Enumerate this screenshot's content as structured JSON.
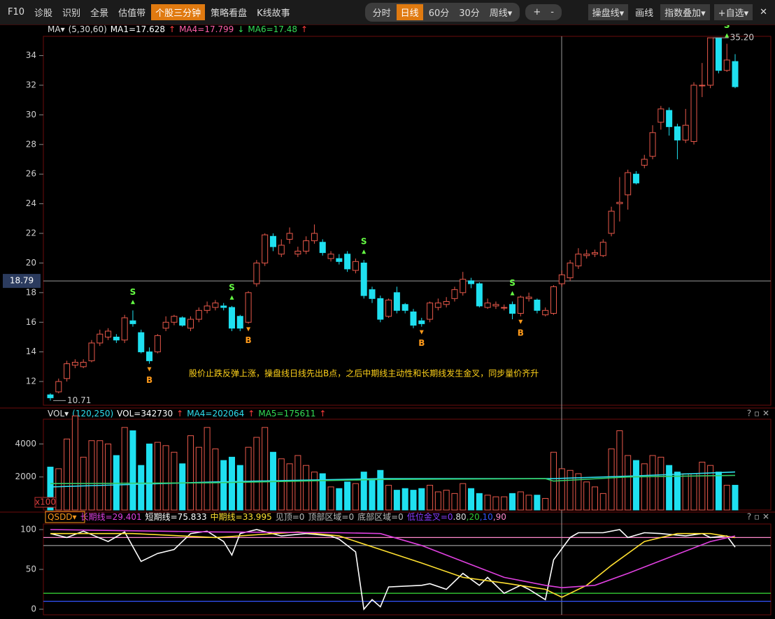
{
  "toolbar": {
    "left": [
      {
        "label": "F10"
      },
      {
        "label": "诊股"
      },
      {
        "label": "识别"
      },
      {
        "label": "全景"
      },
      {
        "label": "估值带"
      },
      {
        "label": "个股三分钟",
        "active": true
      },
      {
        "label": "策略看盘"
      },
      {
        "label": "K线故事"
      }
    ],
    "periods": [
      {
        "label": "分时"
      },
      {
        "label": "日线",
        "active": true
      },
      {
        "label": "60分"
      },
      {
        "label": "30分"
      },
      {
        "label": "周线▾"
      }
    ],
    "zoom": [
      {
        "label": "+"
      },
      {
        "label": "-"
      }
    ],
    "right": [
      {
        "label": "操盘线▾"
      },
      {
        "label": "画线"
      },
      {
        "label": "指数叠加▾"
      },
      {
        "label": "+自选▾"
      },
      {
        "label": "✕"
      }
    ]
  },
  "panel_icons": "? ▫ ✕",
  "chart_data": [
    {
      "type": "candlestick",
      "header": [
        {
          "text": "MA▾",
          "color": "#dddddd"
        },
        {
          "text": "(5,30,60)",
          "color": "#dddddd"
        },
        {
          "text": "MA1=17.628",
          "color": "#ffffff"
        },
        {
          "text": "↑",
          "color": "#ff3b3b"
        },
        {
          "text": "MA4=17.799",
          "color": "#ff5fa8"
        },
        {
          "text": "↓",
          "color": "#33dd55"
        },
        {
          "text": "MA6=17.48",
          "color": "#33dd55"
        },
        {
          "text": "↑",
          "color": "#ff3b3b"
        }
      ],
      "open": [
        11.1,
        11.3,
        12.2,
        13.1,
        13.0,
        13.4,
        14.6,
        15.0,
        15.0,
        14.8,
        16.1,
        15.3,
        14.0,
        14.0,
        15.6,
        16.0,
        16.3,
        15.6,
        16.2,
        16.8,
        17.0,
        17.1,
        17.0,
        16.4,
        16.0,
        18.6,
        20.0,
        21.8,
        20.6,
        21.6,
        20.6,
        20.8,
        21.5,
        21.4,
        20.3,
        20.3,
        20.6,
        19.5,
        20.0,
        18.2,
        17.6,
        16.4,
        18.0,
        17.2,
        16.7,
        16.1,
        16.2,
        17.0,
        17.2,
        17.6,
        18.0,
        18.8,
        18.6,
        17.0,
        17.1,
        17.0,
        17.2,
        16.6,
        17.6,
        17.5,
        16.5,
        16.6,
        18.6,
        19.0,
        19.8,
        20.5,
        20.6,
        20.5,
        22.0,
        24.0,
        24.6,
        26.0,
        26.6,
        27.2,
        29.5,
        30.3,
        29.2,
        28.3,
        28.2,
        32.0,
        32.0,
        35.2,
        33.0,
        33.6
      ],
      "high": [
        11.2,
        12.2,
        13.4,
        13.5,
        13.5,
        14.8,
        15.5,
        15.6,
        15.2,
        16.5,
        16.8,
        15.5,
        14.3,
        15.2,
        16.4,
        16.5,
        16.4,
        16.4,
        17.0,
        17.4,
        17.5,
        17.3,
        17.1,
        16.5,
        18.1,
        20.2,
        22.0,
        22.0,
        21.6,
        22.4,
        21.1,
        21.8,
        22.6,
        21.6,
        20.8,
        20.6,
        20.8,
        20.3,
        20.2,
        18.4,
        17.8,
        17.6,
        18.4,
        17.3,
        16.9,
        16.3,
        17.4,
        17.6,
        17.7,
        18.4,
        19.4,
        19.0,
        18.7,
        17.6,
        17.4,
        17.2,
        17.4,
        17.8,
        18.0,
        17.6,
        17.0,
        18.5,
        19.5,
        20.2,
        21.0,
        20.9,
        20.9,
        21.6,
        23.8,
        25.8,
        26.3,
        26.2,
        27.3,
        29.3,
        30.6,
        30.5,
        29.4,
        30.4,
        32.2,
        33.5,
        35.2,
        35.2,
        34.8,
        34.1
      ],
      "low": [
        10.71,
        11.2,
        12.0,
        12.9,
        12.9,
        13.3,
        14.4,
        14.8,
        14.6,
        14.6,
        15.7,
        13.9,
        13.2,
        13.9,
        15.4,
        15.8,
        15.7,
        15.4,
        16.0,
        16.6,
        16.8,
        16.8,
        15.4,
        15.4,
        15.9,
        18.4,
        19.8,
        20.8,
        20.4,
        21.3,
        20.4,
        20.6,
        21.3,
        20.5,
        20.1,
        19.9,
        19.4,
        19.3,
        17.6,
        17.3,
        16.0,
        16.3,
        16.6,
        16.6,
        15.6,
        15.7,
        16.0,
        16.8,
        17.0,
        17.4,
        17.8,
        18.3,
        17.0,
        16.9,
        16.9,
        16.8,
        16.2,
        16.4,
        17.4,
        16.6,
        16.4,
        16.5,
        18.4,
        18.8,
        19.6,
        20.3,
        20.4,
        20.4,
        21.8,
        22.8,
        23.6,
        25.3,
        26.4,
        27.0,
        29.0,
        28.6,
        27.0,
        28.1,
        28.0,
        31.2,
        31.8,
        32.8,
        32.9,
        31.8
      ],
      "close": [
        10.9,
        12.0,
        13.2,
        13.3,
        13.3,
        14.6,
        15.2,
        15.4,
        14.8,
        16.3,
        15.9,
        14.0,
        13.4,
        15.1,
        16.0,
        16.4,
        15.8,
        16.2,
        16.8,
        17.1,
        17.3,
        17.0,
        15.6,
        15.6,
        18.0,
        20.0,
        21.9,
        21.1,
        21.2,
        22.0,
        20.8,
        21.5,
        22.0,
        20.7,
        20.6,
        20.1,
        19.6,
        20.1,
        17.8,
        17.6,
        16.2,
        17.5,
        16.8,
        16.8,
        15.8,
        15.9,
        17.3,
        17.3,
        17.4,
        18.2,
        18.9,
        18.6,
        17.1,
        17.3,
        17.2,
        17.0,
        16.6,
        17.7,
        17.7,
        16.8,
        16.8,
        18.4,
        19.2,
        20.0,
        20.6,
        20.6,
        20.7,
        21.4,
        23.5,
        24.1,
        26.1,
        25.4,
        27.0,
        28.8,
        30.4,
        29.2,
        28.3,
        29.3,
        32.0,
        32.0,
        35.2,
        33.0,
        33.7,
        31.9
      ],
      "up_color": "#e8584a",
      "down_color": "#1fe0f0",
      "ylim": [
        10.4,
        35.3
      ],
      "yticks": [
        12,
        14,
        16,
        18,
        20,
        22,
        24,
        26,
        28,
        30,
        32,
        34
      ],
      "signals": [
        {
          "x": 10,
          "label": "S"
        },
        {
          "x": 12,
          "label": "B"
        },
        {
          "x": 22,
          "label": "S"
        },
        {
          "x": 24,
          "label": "B"
        },
        {
          "x": 38,
          "label": "S"
        },
        {
          "x": 45,
          "label": "B"
        },
        {
          "x": 56,
          "label": "S"
        },
        {
          "x": 57,
          "label": "B"
        },
        {
          "x": 82,
          "label": "S"
        }
      ],
      "signal_colors": {
        "S": "#66ff44",
        "B": "#ff9a1a"
      },
      "low_label": 10.71,
      "high_label": {
        "value": 35.2,
        "label": "35.20"
      },
      "crosshair_price": 18.79,
      "annotation": "股价止跌反弹上涨，操盘线日线先出B点，之后中期线主动性和长期线发生金叉，同步量价齐升"
    },
    {
      "type": "volume",
      "header": [
        {
          "text": "VOL▾",
          "color": "#dddddd"
        },
        {
          "text": "(120,250)",
          "color": "#2ee0f0"
        },
        {
          "text": "VOL=342730",
          "color": "#ffffff"
        },
        {
          "text": "↑",
          "color": "#ff3b3b"
        },
        {
          "text": "MA4=202064",
          "color": "#2ee0f0"
        },
        {
          "text": "↑",
          "color": "#ff3b3b"
        },
        {
          "text": "MA5=175611",
          "color": "#33dd55"
        },
        {
          "text": "↑",
          "color": "#ff3b3b"
        }
      ],
      "values": [
        2600,
        2500,
        4300,
        5700,
        3200,
        4200,
        4200,
        4000,
        3300,
        5000,
        4800,
        2700,
        4000,
        4100,
        3900,
        3500,
        2800,
        4500,
        3800,
        5000,
        3700,
        3000,
        3200,
        2700,
        3800,
        4400,
        5000,
        3500,
        3100,
        2800,
        3300,
        2700,
        2300,
        2200,
        1400,
        1300,
        1700,
        1600,
        2300,
        1800,
        2400,
        1500,
        1200,
        1300,
        1200,
        1300,
        1500,
        1100,
        1200,
        1000,
        1600,
        1300,
        1000,
        900,
        800,
        800,
        1000,
        1100,
        900,
        900,
        700,
        3500,
        2500,
        2400,
        2200,
        1700,
        1400,
        1000,
        3700,
        4800,
        3300,
        3000,
        2800,
        3300,
        3200,
        2700,
        2300,
        2200,
        2200,
        2900,
        2700,
        2300,
        1500,
        1500
      ],
      "up_color": "#e8584a",
      "down_color": "#1fe0f0",
      "lines": [
        {
          "color": "#2ee0f0",
          "x": [
            0,
            20,
            40,
            60,
            61,
            70,
            83
          ],
          "values": [
            1400,
            1700,
            1900,
            1900,
            1900,
            2050,
            2300
          ]
        },
        {
          "color": "#33cc66",
          "x": [
            0,
            20,
            40,
            60,
            61,
            70,
            83
          ],
          "values": [
            1600,
            1650,
            1850,
            1900,
            1750,
            2000,
            2100
          ]
        }
      ],
      "ylim": [
        0,
        5500
      ],
      "yticks": [
        2000,
        4000
      ],
      "unit": "x100"
    },
    {
      "type": "line",
      "header": [
        {
          "text": "QSDD▾",
          "color": "#ff9a1a"
        },
        {
          "text": "长期线=29.401",
          "color": "#e040e0"
        },
        {
          "text": "短期线=75.833",
          "color": "#ffffff"
        },
        {
          "text": "中期线=33.995",
          "color": "#ffe030"
        },
        {
          "text": "见顶=0",
          "color": "#bbbbbb"
        },
        {
          "text": "顶部区域=0",
          "color": "#bbbbbb"
        },
        {
          "text": "底部区域=0",
          "color": "#bbbbbb"
        },
        {
          "text": "低位金叉=0",
          "color": "#8a3cff"
        }
      ],
      "series": [
        {
          "color": "#ffffff",
          "x": [
            0,
            2,
            4,
            7,
            9,
            11,
            13,
            15,
            17,
            19,
            21,
            22,
            23,
            25,
            28,
            31,
            34,
            35,
            37,
            38,
            39,
            40,
            41,
            45,
            46,
            48,
            50,
            52,
            53,
            55,
            57,
            58,
            60,
            61,
            63,
            64,
            67,
            69,
            70,
            72,
            74,
            77,
            79,
            80,
            82,
            83
          ],
          "values": [
            95,
            90,
            98,
            85,
            97,
            60,
            70,
            75,
            95,
            98,
            85,
            68,
            95,
            100,
            92,
            95,
            92,
            88,
            72,
            0,
            12,
            3,
            28,
            30,
            32,
            25,
            45,
            30,
            40,
            20,
            30,
            25,
            12,
            62,
            90,
            96,
            96,
            100,
            90,
            96,
            95,
            92,
            95,
            90,
            92,
            78
          ]
        },
        {
          "color": "#ffe030",
          "x": [
            0,
            10,
            20,
            30,
            35,
            40,
            45,
            50,
            55,
            60,
            62,
            65,
            68,
            72,
            76,
            80,
            83
          ],
          "values": [
            95,
            95,
            90,
            97,
            92,
            75,
            58,
            40,
            33,
            25,
            15,
            30,
            55,
            85,
            95,
            95,
            90
          ]
        },
        {
          "color": "#e040e0",
          "x": [
            0,
            20,
            35,
            40,
            45,
            50,
            55,
            60,
            62,
            66,
            70,
            75,
            80,
            83
          ],
          "values": [
            100,
            97,
            96,
            95,
            80,
            60,
            40,
            30,
            27,
            30,
            45,
            65,
            85,
            92
          ]
        }
      ],
      "levels": [
        {
          "value": 80,
          "label": ".80"
        },
        {
          "value": 20,
          "label": ",20"
        },
        {
          "value": 10,
          "label": ",10"
        },
        {
          "value": 90,
          "label": ",90"
        }
      ],
      "level_colors": [
        "#888888",
        "#33cc33",
        "#3355ff",
        "#ff88cc"
      ],
      "ylim": [
        -7,
        107
      ],
      "yticks": [
        0,
        50,
        100
      ]
    }
  ]
}
